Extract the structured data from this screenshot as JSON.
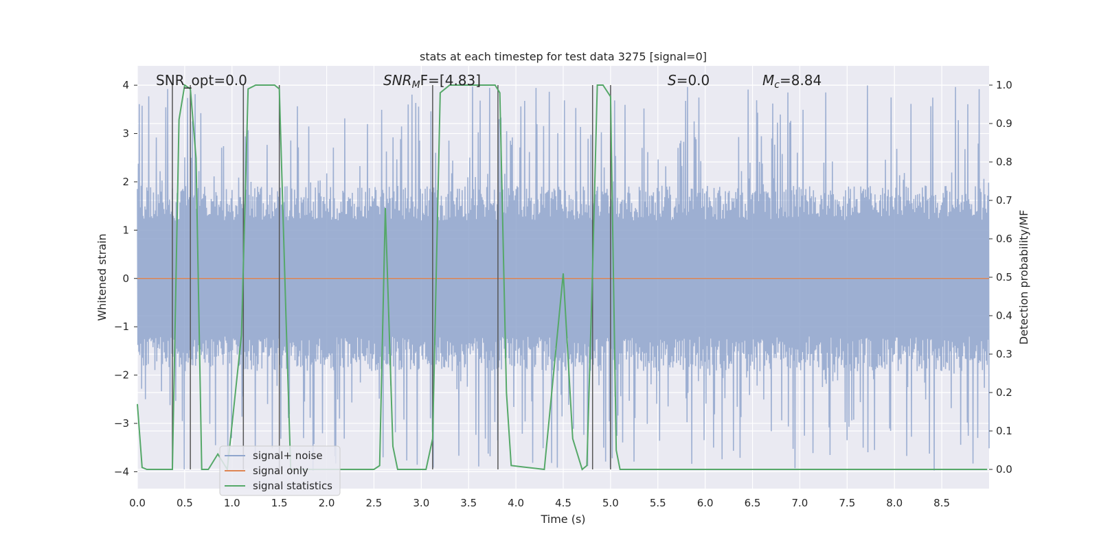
{
  "chart_data": {
    "type": "line",
    "title": "stats at each timestep for test data 3275 [signal=0]",
    "xlabel": "Time (s)",
    "ylabel_left": "Whitened strain",
    "ylabel_right": "Detection probability/MF",
    "xlim": [
      0,
      9.0
    ],
    "ylim_left": [
      -4.35,
      4.4
    ],
    "ylim_right": [
      -0.05,
      1.05
    ],
    "x_ticks": [
      "0.0",
      "0.5",
      "1.0",
      "1.5",
      "2.0",
      "2.5",
      "3.0",
      "3.5",
      "4.0",
      "4.5",
      "5.0",
      "5.5",
      "6.0",
      "6.5",
      "7.0",
      "7.5",
      "8.0",
      "8.5"
    ],
    "y_ticks_left": [
      "4",
      "3",
      "2",
      "1",
      "0",
      "−1",
      "−2",
      "−3",
      "−4"
    ],
    "y_ticks_right": [
      "1.0",
      "0.9",
      "0.8",
      "0.7",
      "0.6",
      "0.5",
      "0.4",
      "0.3",
      "0.2",
      "0.1",
      "0.0"
    ],
    "grid": true,
    "legend_position": "lower-left",
    "annotations": {
      "snr_opt": "SNR_opt=0.0",
      "snr_mf_main": "SNR",
      "snr_mf_sub": "M",
      "snr_mf_rest": "F=[4.83]",
      "s_italic": "S",
      "s_rest": "=0.0",
      "mc_main": "M",
      "mc_sub": "c",
      "mc_rest": "=8.84"
    },
    "vertical_lines_x": [
      0.37,
      0.56,
      1.12,
      1.5,
      3.12,
      3.81,
      4.81,
      5.0
    ],
    "series": [
      {
        "name": "signal+ noise",
        "color": "#8fa5cd",
        "description_axis": "left",
        "noise": {
          "typical_abs": 1.6,
          "max_abs": 4.0,
          "mean": 0.0
        }
      },
      {
        "name": "signal only",
        "color": "#dd8452",
        "description_axis": "left",
        "values_constant": 0.0
      },
      {
        "name": "signal statistics",
        "color": "#55a868",
        "description_axis": "right",
        "x": [
          0.0,
          0.05,
          0.1,
          0.37,
          0.44,
          0.5,
          0.56,
          0.62,
          0.68,
          0.75,
          0.85,
          0.95,
          1.1,
          1.17,
          1.25,
          1.3,
          1.45,
          1.5,
          1.57,
          1.62,
          2.5,
          2.56,
          2.62,
          2.7,
          2.75,
          3.05,
          3.12,
          3.2,
          3.3,
          3.78,
          3.83,
          3.9,
          3.95,
          4.3,
          4.5,
          4.6,
          4.7,
          4.75,
          4.81,
          4.86,
          4.92,
          5.0,
          5.06,
          5.1,
          8.98
        ],
        "values": [
          0.17,
          0.005,
          0.0,
          0.0,
          0.91,
          1.0,
          0.99,
          0.81,
          0.0,
          0.0,
          0.04,
          0.0,
          0.35,
          0.99,
          1.0,
          1.0,
          1.0,
          0.99,
          0.4,
          0.0,
          0.0,
          0.01,
          0.68,
          0.06,
          0.0,
          0.0,
          0.08,
          0.98,
          1.0,
          1.0,
          0.98,
          0.2,
          0.01,
          0.0,
          0.51,
          0.08,
          0.0,
          0.01,
          0.52,
          1.0,
          1.0,
          0.97,
          0.05,
          0.0,
          0.0
        ]
      }
    ]
  }
}
